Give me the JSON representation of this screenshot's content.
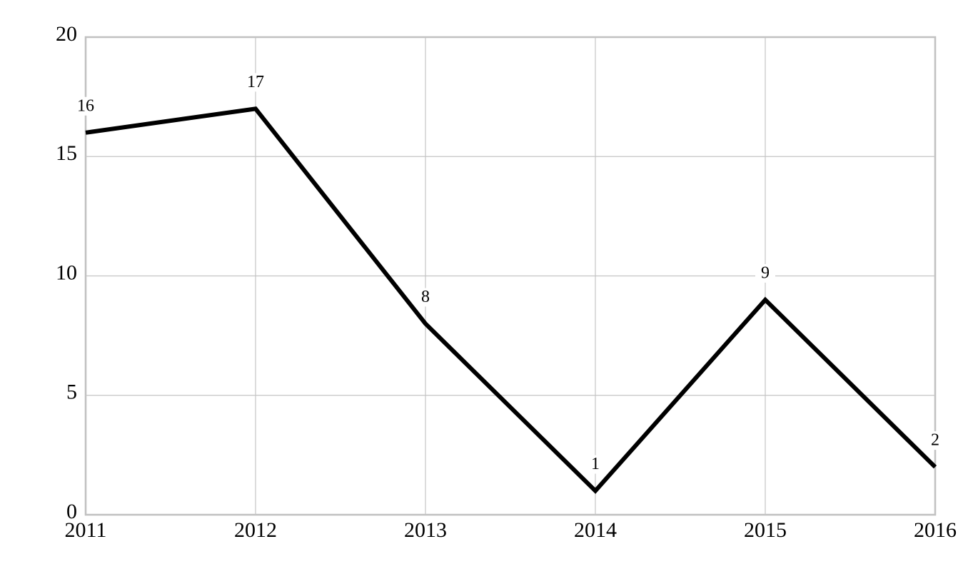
{
  "chart_data": {
    "type": "line",
    "x": [
      2011,
      2012,
      2013,
      2014,
      2015,
      2016
    ],
    "values": [
      16,
      17,
      8,
      1,
      9,
      2
    ],
    "color": "#000000",
    "xlim": [
      2011,
      2016
    ],
    "xticks": [
      2011,
      2012,
      2013,
      2014,
      2015,
      2016
    ],
    "ylim": [
      0,
      20
    ],
    "yticks": [
      0,
      5,
      10,
      15,
      20
    ],
    "grid": true
  }
}
